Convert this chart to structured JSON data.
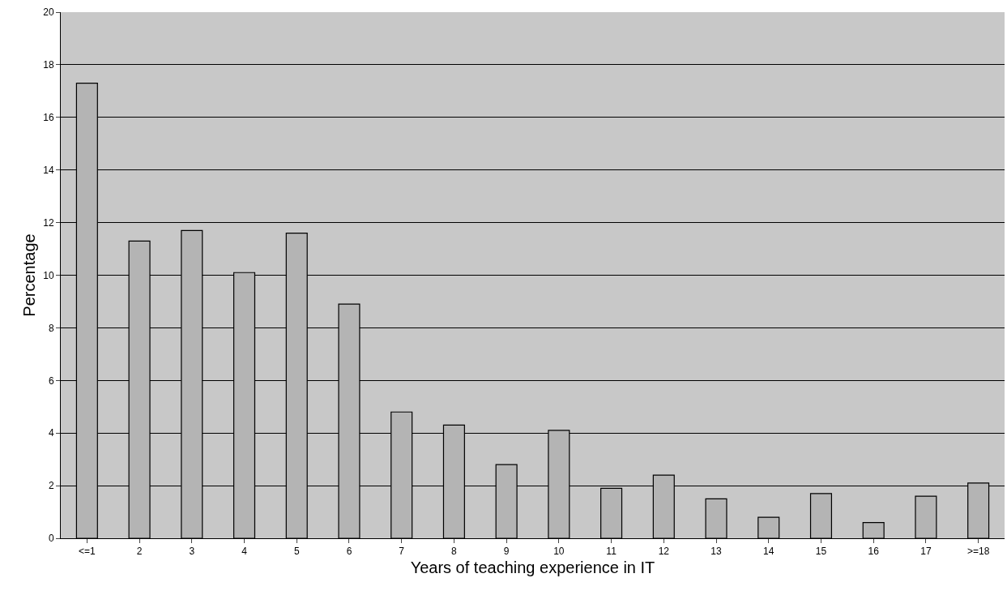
{
  "chart_data": {
    "type": "bar",
    "xlabel": "Years of teaching experience in IT",
    "ylabel": "Percentage",
    "categories": [
      "<=1",
      "2",
      "3",
      "4",
      "5",
      "6",
      "7",
      "8",
      "9",
      "10",
      "11",
      "12",
      "13",
      "14",
      "15",
      "16",
      "17",
      ">=18"
    ],
    "values": [
      17.3,
      11.3,
      11.7,
      10.1,
      11.6,
      8.9,
      4.8,
      4.3,
      2.8,
      4.1,
      1.9,
      2.4,
      1.5,
      0.8,
      1.7,
      0.6,
      1.6,
      2.1
    ],
    "color": "#b4b4b4",
    "ylim": [
      0,
      20
    ],
    "yticks": [
      0,
      2,
      4,
      6,
      8,
      10,
      12,
      14,
      16,
      18,
      20
    ],
    "grid": "y",
    "legend": false
  }
}
